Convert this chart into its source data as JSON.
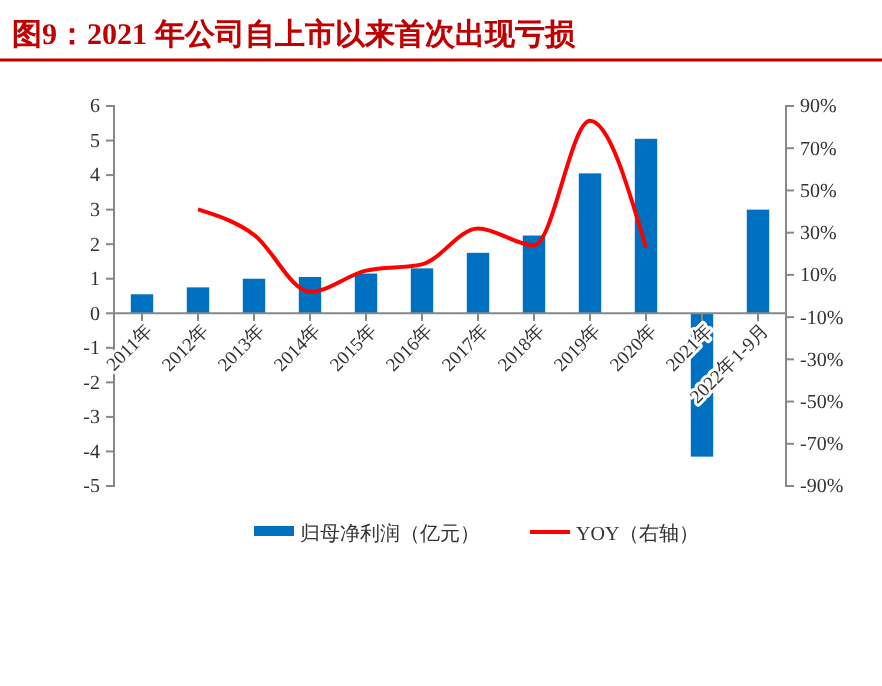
{
  "chart_data": {
    "type": "bar",
    "title": "图9：2021 年公司自上市以来首次出现亏损",
    "categories": [
      "2011年",
      "2012年",
      "2013年",
      "2014年",
      "2015年",
      "2016年",
      "2017年",
      "2018年",
      "2019年",
      "2020年",
      "2021年",
      "2022年1-9月"
    ],
    "series": [
      {
        "name": "归母净利润（亿元）",
        "color": "#0070c0",
        "values": [
          0.55,
          0.75,
          1.0,
          1.05,
          1.15,
          1.3,
          1.75,
          2.25,
          4.05,
          5.05,
          -4.15,
          3.0
        ]
      },
      {
        "name": "YOY（右轴）",
        "type": "line",
        "axis": "y2",
        "color": "#ff0000",
        "values": [
          null,
          41,
          29,
          2,
          12,
          15,
          32,
          24,
          83,
          23,
          null,
          null
        ]
      }
    ],
    "ylim": [
      -5,
      6
    ],
    "yticks": [
      -5,
      -4,
      -3,
      -2,
      -1,
      0,
      1,
      2,
      3,
      4,
      5,
      6
    ],
    "y2lim": [
      -90,
      90
    ],
    "y2ticks": [
      {
        "value": -90,
        "label": "-90%"
      },
      {
        "value": -70,
        "label": "-70%"
      },
      {
        "value": -50,
        "label": "-50%"
      },
      {
        "value": -30,
        "label": "-30%"
      },
      {
        "value": -10,
        "label": "-10%"
      },
      {
        "value": 10,
        "label": "10%"
      },
      {
        "value": 30,
        "label": "30%"
      },
      {
        "value": 50,
        "label": "50%"
      },
      {
        "value": 70,
        "label": "70%"
      },
      {
        "value": 90,
        "label": "90%"
      }
    ],
    "legend": "bottom",
    "grid": false,
    "marker": "none",
    "line_style": "solid"
  }
}
